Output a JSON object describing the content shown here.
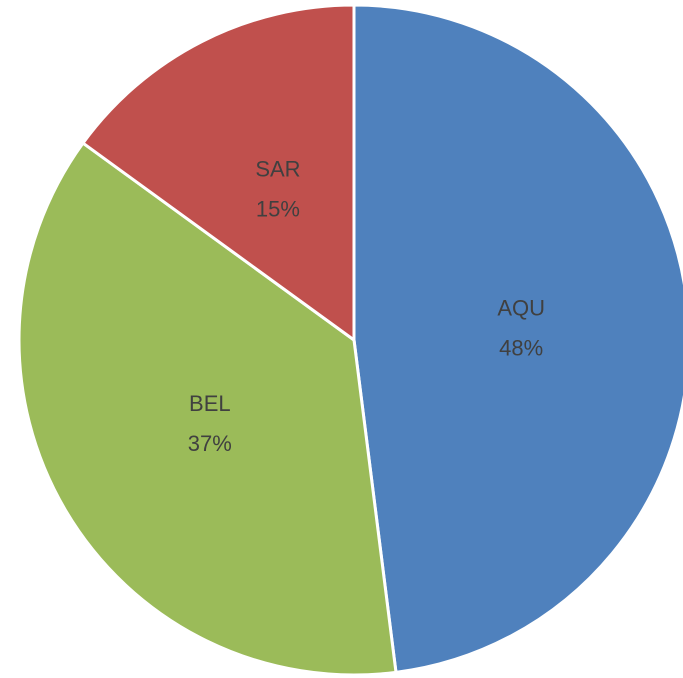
{
  "chart_data": {
    "type": "pie",
    "categories": [
      "AQU",
      "BEL",
      "SAR"
    ],
    "values": [
      48,
      37,
      15
    ],
    "value_labels": [
      "48%",
      "37%",
      "15%"
    ],
    "colors": [
      "#4f81bd",
      "#9bbb59",
      "#c0504d"
    ]
  }
}
